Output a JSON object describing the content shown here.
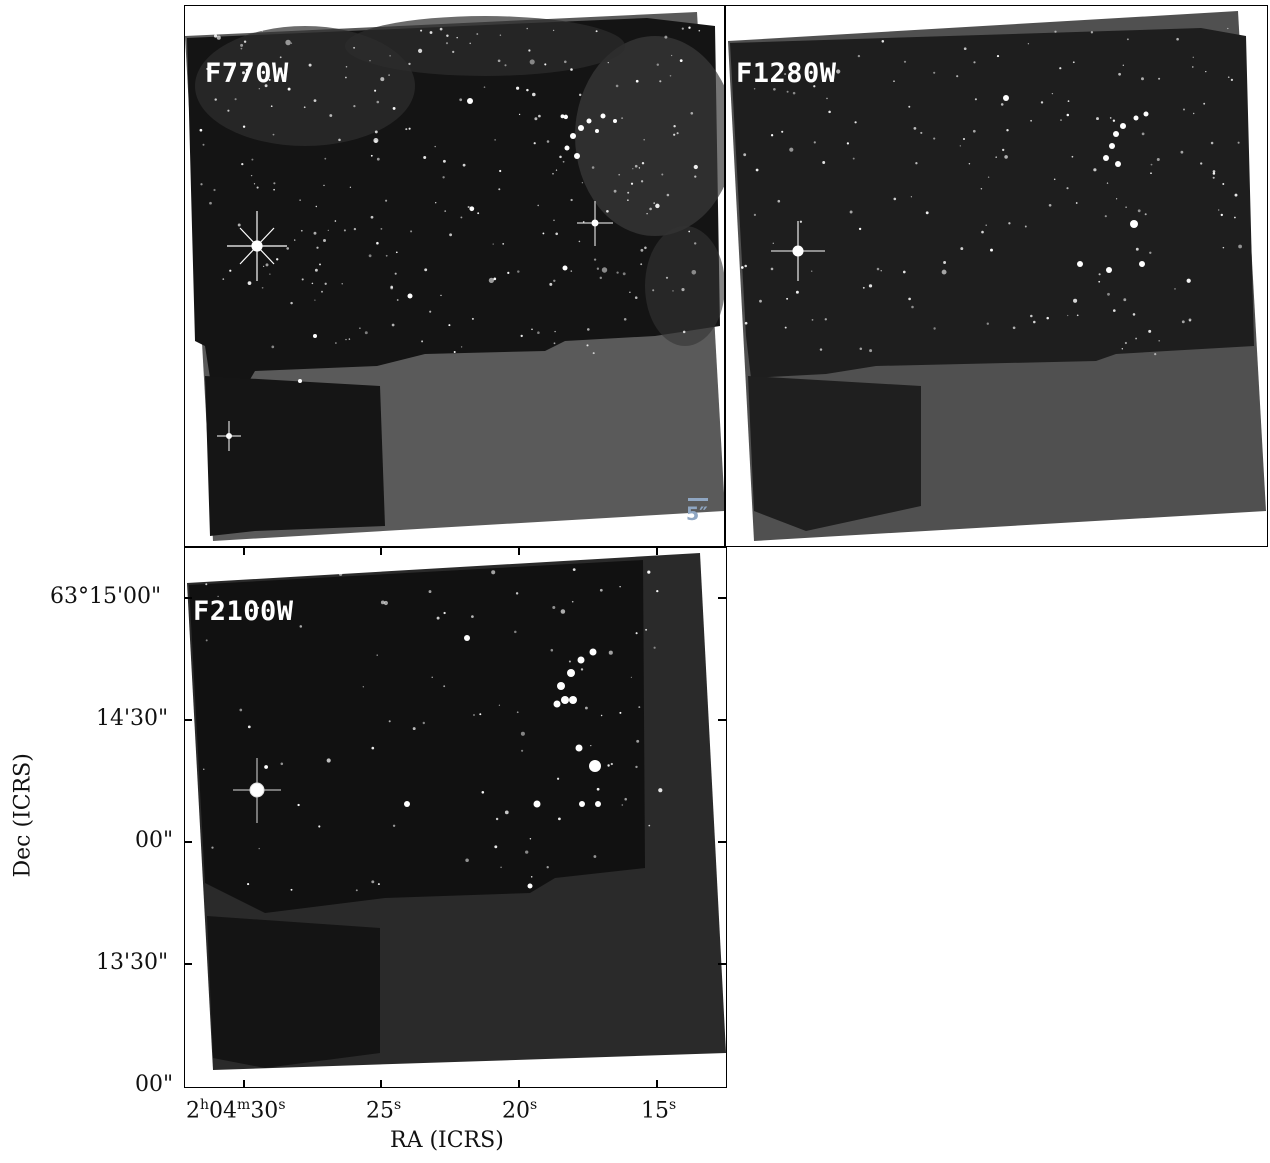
{
  "panels": [
    {
      "id": "f770w",
      "label": "F770W",
      "scale_bar": "5″"
    },
    {
      "id": "f1280w",
      "label": "F1280W"
    },
    {
      "id": "f2100w",
      "label": "F2100W"
    }
  ],
  "axes": {
    "ylabel": "Dec (ICRS)",
    "xlabel": "RA (ICRS)",
    "yticks": [
      "63°15'00\"",
      "14'30\"",
      "00\"",
      "13'30\"",
      "00\""
    ],
    "xticks": [
      {
        "h": "2",
        "hu": "h",
        "m": "04",
        "mu": "m",
        "s": "30",
        "su": "s"
      },
      {
        "s": "25",
        "su": "s"
      },
      {
        "s": "20",
        "su": "s"
      },
      {
        "s": "15",
        "su": "s"
      }
    ]
  },
  "colors": {
    "background_fill": "#5a5a5a",
    "sky": "#151515",
    "f2100w_fill": "#2a2a2a",
    "label": "#ffffff",
    "scalebar": "#8fa6c2"
  }
}
